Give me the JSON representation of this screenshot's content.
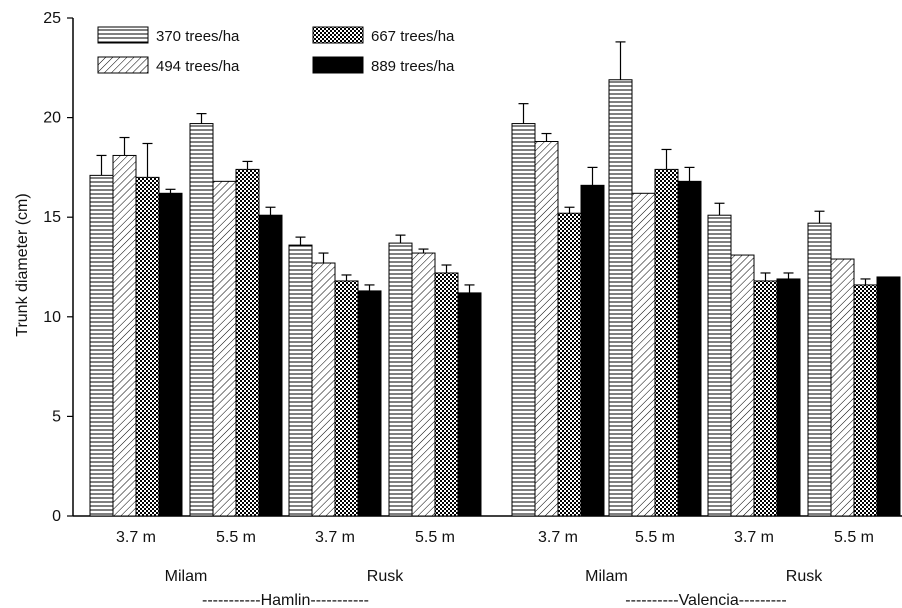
{
  "chart_data": {
    "type": "bar",
    "ylabel": "Trunk diameter (cm)",
    "ylim": [
      0,
      25
    ],
    "yticks": [
      0,
      5,
      10,
      15,
      20,
      25
    ],
    "categories": [
      "3.7 m",
      "5.5 m",
      "3.7 m",
      "5.5 m",
      "3.7 m",
      "5.5 m",
      "3.7 m",
      "5.5 m"
    ],
    "sites": [
      "Milam",
      "Rusk",
      "Milam",
      "Rusk"
    ],
    "varieties": [
      "-----------Hamlin-----------",
      "----------Valencia---------"
    ],
    "series": [
      {
        "name": "370 trees/ha",
        "pattern": "horizontal",
        "values": [
          17.1,
          19.7,
          13.6,
          13.7,
          19.7,
          21.9,
          15.1,
          14.7
        ],
        "errors": [
          1.0,
          0.5,
          0.4,
          0.4,
          1.0,
          1.9,
          0.6,
          0.6
        ]
      },
      {
        "name": "494 trees/ha",
        "pattern": "diagonal",
        "values": [
          18.1,
          16.8,
          12.7,
          13.2,
          18.8,
          16.2,
          13.1,
          12.9
        ],
        "errors": [
          0.9,
          0.0,
          0.5,
          0.2,
          0.4,
          0.0,
          0.0,
          0.0
        ]
      },
      {
        "name": "667 trees/ha",
        "pattern": "crosshatch",
        "values": [
          17.0,
          17.4,
          11.8,
          12.2,
          15.2,
          17.4,
          11.8,
          11.6
        ],
        "errors": [
          1.7,
          0.4,
          0.3,
          0.4,
          0.3,
          1.0,
          0.4,
          0.3
        ]
      },
      {
        "name": "889 trees/ha",
        "pattern": "solid",
        "values": [
          16.2,
          15.1,
          11.3,
          11.2,
          16.6,
          16.8,
          11.9,
          12.0
        ],
        "errors": [
          0.2,
          0.4,
          0.3,
          0.4,
          0.9,
          0.7,
          0.3,
          0.0
        ]
      }
    ],
    "legend_position": "top-left",
    "grid": false
  }
}
